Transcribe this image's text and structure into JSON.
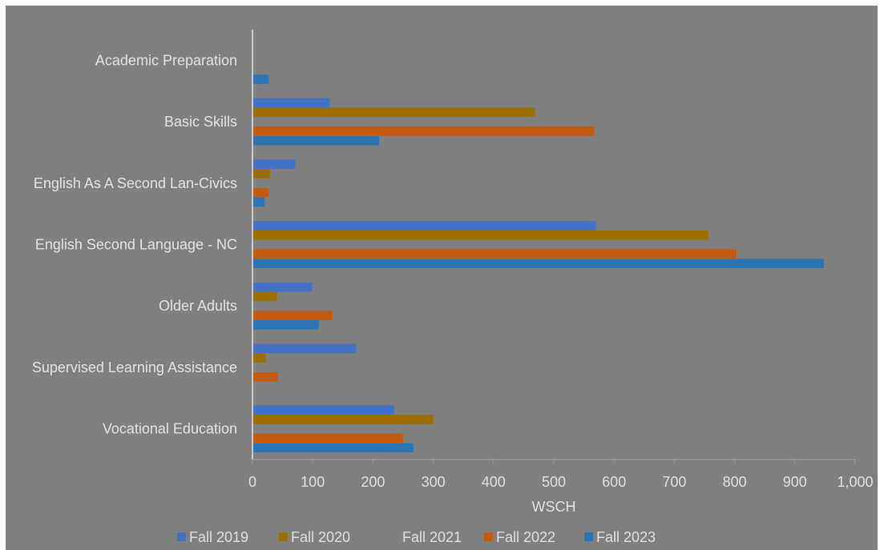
{
  "chart_data": {
    "type": "bar",
    "orientation": "horizontal",
    "title": "",
    "xlabel": "WSCH",
    "ylabel": "",
    "xlim": [
      0,
      1000
    ],
    "x_ticks": [
      0,
      100,
      200,
      300,
      400,
      500,
      600,
      700,
      800,
      900,
      1000
    ],
    "x_tick_labels": [
      "0",
      "100",
      "200",
      "300",
      "400",
      "500",
      "600",
      "700",
      "800",
      "900",
      "1,000"
    ],
    "grid": false,
    "legend_position": "bottom",
    "categories": [
      "Academic Preparation",
      "Basic Skills",
      "English As A Second Lan-Civics",
      "English Second Language - NC",
      "Older Adults",
      "Supervised Learning Assistance",
      "Vocational Education"
    ],
    "series": [
      {
        "name": "Fall 2019",
        "color": "#4472c4",
        "values": [
          0,
          128,
          71,
          570,
          99,
          172,
          235
        ]
      },
      {
        "name": "Fall 2020",
        "color": "#9c7000",
        "values": [
          0,
          469,
          29,
          756,
          40,
          22,
          300
        ]
      },
      {
        "name": "Fall 2021",
        "color": "#7f7f7f",
        "values": [
          0,
          0,
          0,
          0,
          0,
          0,
          0
        ]
      },
      {
        "name": "Fall 2022",
        "color": "#c55a11",
        "values": [
          0,
          567,
          27,
          803,
          133,
          42,
          250
        ]
      },
      {
        "name": "Fall 2023",
        "color": "#2e75b6",
        "values": [
          27,
          210,
          20,
          948,
          110,
          0,
          267
        ]
      }
    ]
  }
}
